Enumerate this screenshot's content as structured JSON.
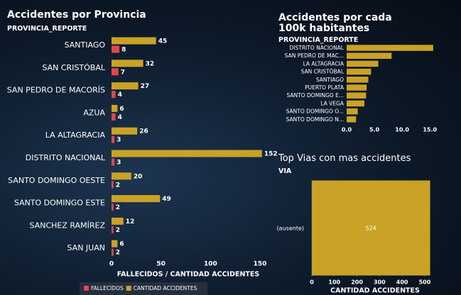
{
  "chart_data": [
    {
      "type": "bar",
      "orientation": "horizontal",
      "title": "Accidentes por Provincia",
      "y_label": "PROVINCIA_REPORTE",
      "x_label": "FALLECIDOS / CANTIDAD ACCIDENTES",
      "categories": [
        "SANTIAGO",
        "SAN CRISTÓBAL",
        "SAN PEDRO DE MACORÍS",
        "AZUA",
        "LA ALTAGRACIA",
        "DISTRITO NACIONAL",
        "SANTO DOMINGO OESTE",
        "SANTO DOMINGO ESTE",
        "SANCHEZ RAMÍREZ",
        "SAN JUAN"
      ],
      "series": [
        {
          "name": "CANTIDAD ACCIDENTES",
          "color": "#c9a227",
          "values": [
            45,
            32,
            27,
            6,
            26,
            152,
            20,
            49,
            12,
            6
          ]
        },
        {
          "name": "FALLECIDOS",
          "color": "#e0474c",
          "values": [
            8,
            7,
            4,
            4,
            3,
            3,
            2,
            2,
            2,
            2
          ]
        }
      ],
      "xlim": [
        0,
        155
      ],
      "xticks": [
        0,
        50,
        100,
        150
      ],
      "grid": false,
      "data_labels": true,
      "legend": "bottom"
    },
    {
      "type": "bar",
      "orientation": "horizontal",
      "title": "Accidentes por cada 100k habitantes",
      "y_label": "PROVINCIA_REPORTE",
      "categories": [
        "DISTRITO NACIONAL",
        "SAN PEDRO DE MAC...",
        "LA ALTAGRACIA",
        "SAN CRISTÓBAL",
        "SANTIAGO",
        "PUERTO PLATA",
        "SANTO DOMINGO E...",
        "LA VEGA",
        "SANTO DOMINGO O...",
        "SANTO DOMINGO N..."
      ],
      "values": [
        15.6,
        8.1,
        5.7,
        4.4,
        3.9,
        3.6,
        3.5,
        3.2,
        2.0,
        1.7
      ],
      "color": "#c9a227",
      "xlim": [
        0,
        16
      ],
      "xticks": [
        {
          "value": 0,
          "label": "0.0"
        },
        {
          "value": 5,
          "label": "5.0"
        },
        {
          "value": 10,
          "label": "10.0"
        },
        {
          "value": 15,
          "label": "15.0"
        }
      ],
      "grid": false,
      "data_labels": false
    },
    {
      "type": "bar",
      "orientation": "horizontal",
      "title": "Top Vias con mas accidentes",
      "y_label": "VIA",
      "x_label": "CANTIDAD ACCIDENTES",
      "categories": [
        "(ausente)"
      ],
      "values": [
        524
      ],
      "color": "#c9a227",
      "xlim": [
        0,
        560
      ],
      "xticks": [
        0,
        100,
        200,
        300,
        400,
        500
      ],
      "grid": true,
      "data_labels": true
    }
  ]
}
